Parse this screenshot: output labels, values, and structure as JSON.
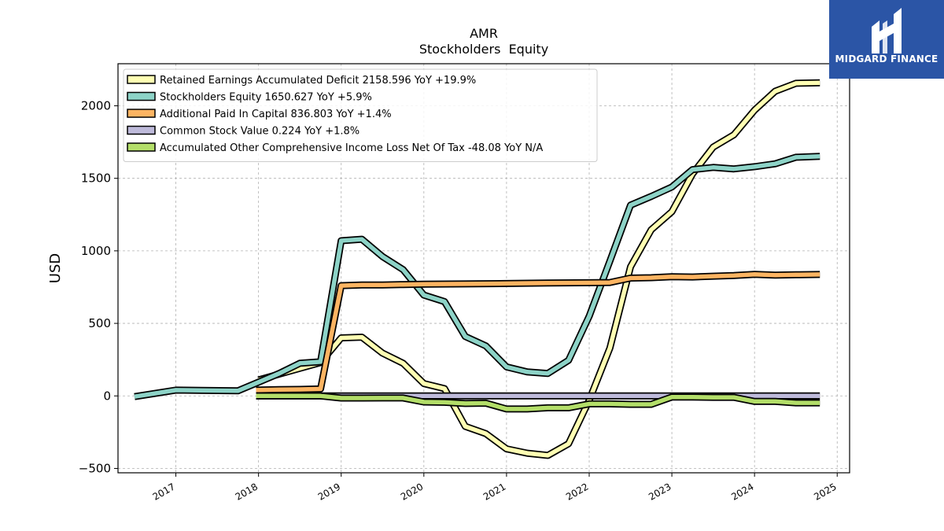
{
  "chart_data": {
    "type": "line",
    "title": "AMR",
    "subtitle": "Stockholders  Equity",
    "ylabel": "USD",
    "xlabel": "",
    "ylim": [
      -530,
      2290
    ],
    "xlim": [
      2016.3,
      2025.15
    ],
    "yticks": [
      -500,
      0,
      500,
      1000,
      1500,
      2000
    ],
    "ytick_labels": [
      "−500",
      "0",
      "500",
      "1000",
      "1500",
      "2000"
    ],
    "xticks": [
      2017,
      2018,
      2019,
      2020,
      2021,
      2022,
      2023,
      2024,
      2025
    ],
    "xtick_labels": [
      "2017",
      "2018",
      "2019",
      "2020",
      "2021",
      "2022",
      "2023",
      "2024",
      "2025"
    ],
    "grid": true,
    "legend_position": "top-left",
    "series": [
      {
        "name": "Retained Earnings Accumulated Deficit",
        "legend": "Retained Earnings Accumulated Deficit  2158.596 YoY +19.9%",
        "color": "#ffffb3",
        "points": [
          [
            2018.0,
            110
          ],
          [
            2018.25,
            150
          ],
          [
            2018.5,
            190
          ],
          [
            2018.75,
            230
          ],
          [
            2019.0,
            400
          ],
          [
            2019.25,
            405
          ],
          [
            2019.5,
            295
          ],
          [
            2019.75,
            225
          ],
          [
            2020.0,
            85
          ],
          [
            2020.25,
            50
          ],
          [
            2020.5,
            -210
          ],
          [
            2020.75,
            -260
          ],
          [
            2021.0,
            -365
          ],
          [
            2021.25,
            -395
          ],
          [
            2021.5,
            -410
          ],
          [
            2021.75,
            -330
          ],
          [
            2022.0,
            -30
          ],
          [
            2022.25,
            330
          ],
          [
            2022.5,
            890
          ],
          [
            2022.75,
            1145
          ],
          [
            2023.0,
            1270
          ],
          [
            2023.25,
            1530
          ],
          [
            2023.5,
            1715
          ],
          [
            2023.75,
            1800
          ],
          [
            2024.0,
            1970
          ],
          [
            2024.25,
            2100
          ],
          [
            2024.5,
            2155
          ],
          [
            2024.79,
            2159
          ]
        ]
      },
      {
        "name": "Stockholders Equity",
        "legend": "Stockholders Equity  1650.627 YoY +5.9%",
        "color": "#8dd3c7",
        "points": [
          [
            2016.5,
            -5
          ],
          [
            2017.0,
            40
          ],
          [
            2017.75,
            35
          ],
          [
            2018.0,
            95
          ],
          [
            2018.25,
            155
          ],
          [
            2018.5,
            225
          ],
          [
            2018.75,
            235
          ],
          [
            2019.0,
            1070
          ],
          [
            2019.25,
            1080
          ],
          [
            2019.5,
            960
          ],
          [
            2019.75,
            870
          ],
          [
            2020.0,
            695
          ],
          [
            2020.25,
            650
          ],
          [
            2020.5,
            410
          ],
          [
            2020.75,
            345
          ],
          [
            2021.0,
            200
          ],
          [
            2021.25,
            165
          ],
          [
            2021.5,
            155
          ],
          [
            2021.75,
            245
          ],
          [
            2022.0,
            550
          ],
          [
            2022.25,
            930
          ],
          [
            2022.5,
            1315
          ],
          [
            2022.75,
            1375
          ],
          [
            2023.0,
            1440
          ],
          [
            2023.25,
            1560
          ],
          [
            2023.5,
            1575
          ],
          [
            2023.75,
            1565
          ],
          [
            2024.0,
            1580
          ],
          [
            2024.25,
            1600
          ],
          [
            2024.5,
            1645
          ],
          [
            2024.79,
            1651
          ]
        ]
      },
      {
        "name": "Additional Paid In Capital",
        "legend": "Additional Paid In Capital  836.803 YoY +1.4%",
        "color": "#fdb462",
        "points": [
          [
            2017.97,
            40
          ],
          [
            2018.25,
            43
          ],
          [
            2018.5,
            45
          ],
          [
            2018.75,
            48
          ],
          [
            2019.0,
            760
          ],
          [
            2019.25,
            765
          ],
          [
            2019.5,
            765
          ],
          [
            2019.75,
            768
          ],
          [
            2020.0,
            770
          ],
          [
            2020.5,
            772
          ],
          [
            2021.0,
            775
          ],
          [
            2021.5,
            778
          ],
          [
            2022.0,
            780
          ],
          [
            2022.25,
            782
          ],
          [
            2022.5,
            812
          ],
          [
            2022.75,
            815
          ],
          [
            2023.0,
            822
          ],
          [
            2023.25,
            820
          ],
          [
            2023.5,
            825
          ],
          [
            2023.75,
            830
          ],
          [
            2024.0,
            838
          ],
          [
            2024.25,
            833
          ],
          [
            2024.5,
            835
          ],
          [
            2024.79,
            837
          ]
        ]
      },
      {
        "name": "Common Stock Value",
        "legend": "Common Stock Value  0.224 YoY +1.8%",
        "color": "#bebada",
        "points": [
          [
            2017.97,
            0.2
          ],
          [
            2018.5,
            0.2
          ],
          [
            2019.0,
            0.2
          ],
          [
            2020.0,
            0.21
          ],
          [
            2021.0,
            0.21
          ],
          [
            2022.0,
            0.22
          ],
          [
            2023.0,
            0.22
          ],
          [
            2024.0,
            0.22
          ],
          [
            2024.79,
            0.224
          ]
        ]
      },
      {
        "name": "Accumulated Other Comprehensive Income Loss Net Of Tax",
        "legend": "Accumulated Other Comprehensive Income Loss Net Of Tax  -48.08 YoY N/A",
        "color": "#b3de69",
        "points": [
          [
            2017.97,
            0
          ],
          [
            2018.25,
            0
          ],
          [
            2018.5,
            0
          ],
          [
            2018.75,
            0
          ],
          [
            2019.0,
            -15
          ],
          [
            2019.25,
            -15
          ],
          [
            2019.5,
            -14
          ],
          [
            2019.75,
            -14
          ],
          [
            2020.0,
            -42
          ],
          [
            2020.25,
            -44
          ],
          [
            2020.5,
            -52
          ],
          [
            2020.75,
            -50
          ],
          [
            2021.0,
            -90
          ],
          [
            2021.25,
            -90
          ],
          [
            2021.5,
            -82
          ],
          [
            2021.75,
            -82
          ],
          [
            2022.0,
            -55
          ],
          [
            2022.25,
            -55
          ],
          [
            2022.5,
            -58
          ],
          [
            2022.75,
            -58
          ],
          [
            2023.0,
            -8
          ],
          [
            2023.25,
            -8
          ],
          [
            2023.5,
            -10
          ],
          [
            2023.75,
            -10
          ],
          [
            2024.0,
            -38
          ],
          [
            2024.25,
            -38
          ],
          [
            2024.5,
            -48
          ],
          [
            2024.79,
            -48
          ]
        ]
      }
    ]
  },
  "branding": {
    "logo_text": "MIDGARD FINANCE",
    "logo_color": "#2b55a6"
  }
}
